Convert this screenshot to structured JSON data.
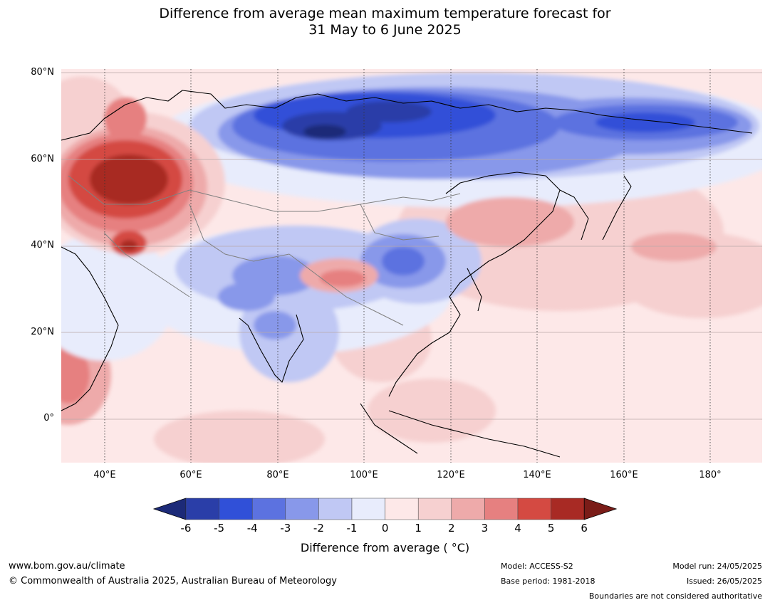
{
  "title_line1": "Difference from average mean maximum temperature forecast for",
  "title_line2": "31 May to 6 June 2025",
  "lat_ticks": [
    "80°N",
    "60°N",
    "40°N",
    "20°N",
    "0°"
  ],
  "lon_ticks": [
    "40°E",
    "60°E",
    "80°E",
    "100°E",
    "120°E",
    "140°E",
    "160°E",
    "180°"
  ],
  "colorbar": {
    "ticks": [
      "-6",
      "-5",
      "-4",
      "-3",
      "-2",
      "-1",
      "0",
      "1",
      "2",
      "3",
      "4",
      "5",
      "6"
    ],
    "colors": [
      "#1c2a78",
      "#2a3ea8",
      "#3050d8",
      "#5c72e0",
      "#8898ea",
      "#c0c8f4",
      "#e8ecfc",
      "#fde8e8",
      "#f6d0d0",
      "#eeaaaa",
      "#e68080",
      "#d44a42",
      "#a82a24",
      "#7a1c18"
    ],
    "label": "Difference from average ( °C)"
  },
  "footer": {
    "url": "www.bom.gov.au/climate",
    "copyright": "© Commonwealth of Australia 2025, Australian Bureau of Meteorology",
    "model": "Model: ACCESS-S2",
    "base_period": "Base period: 1981-2018",
    "model_run": "Model run: 24/05/2025",
    "issued": "Issued: 26/05/2025",
    "disclaimer": "Boundaries are not considered authoritative"
  }
}
